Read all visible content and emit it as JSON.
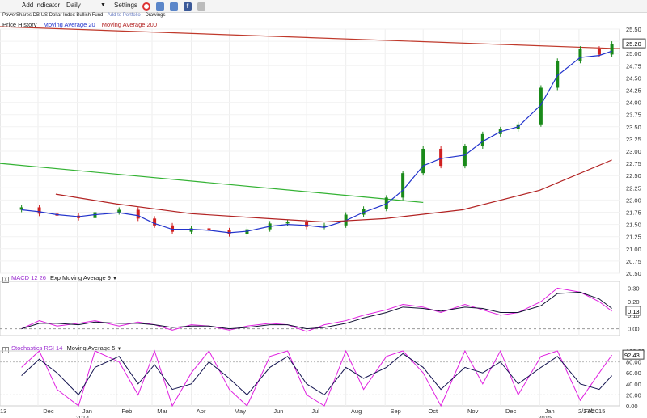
{
  "toolbar": {
    "logo": "",
    "add_indicator": "Add Indicator",
    "interval": "Daily",
    "settings": "Settings",
    "status": "",
    "icons": [
      "record-icon",
      "bar-chart-icon",
      "share-icon",
      "facebook-icon",
      "email-icon"
    ]
  },
  "subtitle": {
    "fund": "PowerShares DB US Dollar Index Bullish Fund",
    "portfolio": "Add to Portfolio",
    "drawings": "Drawings"
  },
  "legend": {
    "price": "Price History",
    "ma20": "Moving Average 20",
    "ma200": "Moving Average 200"
  },
  "colors": {
    "up": "#1a8a1a",
    "down": "#d02020",
    "ma20": "#2233cc",
    "ma200": "#b22222",
    "trend_red": "#c0392b",
    "trend_green": "#33b233",
    "macd": "#e020e0",
    "signal": "#111133",
    "stoch": "#e020e0",
    "stoch_ma": "#141450"
  },
  "chart_data": [
    {
      "type": "candlestick",
      "title": "PowerShares DB US Dollar Index Bullish Fund",
      "series": [
        {
          "name": "Price History"
        },
        {
          "name": "Moving Average 20"
        },
        {
          "name": "Moving Average 200"
        }
      ],
      "ylim": [
        20.5,
        25.5
      ],
      "yticks": [
        "25.50",
        "25.25",
        "25.00",
        "24.75",
        "24.50",
        "24.25",
        "24.00",
        "23.75",
        "23.50",
        "23.25",
        "23.00",
        "22.75",
        "22.50",
        "22.25",
        "22.00",
        "21.75",
        "21.50",
        "21.25",
        "21.00",
        "20.75",
        "20.50"
      ],
      "last_price": "25.20",
      "x_dates": [
        "2013-11-18",
        "2013-12-02",
        "2013-12-16",
        "2014-01-02",
        "2014-01-15",
        "2014-02-03",
        "2014-02-18",
        "2014-03-03",
        "2014-03-17",
        "2014-04-01",
        "2014-04-15",
        "2014-05-01",
        "2014-05-15",
        "2014-06-02",
        "2014-06-16",
        "2014-07-01",
        "2014-07-15",
        "2014-08-01",
        "2014-08-15",
        "2014-09-02",
        "2014-09-15",
        "2014-10-01",
        "2014-10-15",
        "2014-11-03",
        "2014-11-17",
        "2014-12-01",
        "2014-12-15",
        "2015-01-02",
        "2015-01-15",
        "2015-02-02",
        "2015-02-17",
        "2015-02-27"
      ],
      "close": [
        21.85,
        21.72,
        21.68,
        21.63,
        21.75,
        21.8,
        21.62,
        21.48,
        21.35,
        21.42,
        21.38,
        21.3,
        21.4,
        21.52,
        21.55,
        21.45,
        21.48,
        21.7,
        21.82,
        22.05,
        22.55,
        23.05,
        22.7,
        23.1,
        23.35,
        23.45,
        23.55,
        24.3,
        24.85,
        25.1,
        24.98,
        25.2
      ],
      "ma20": [
        21.8,
        21.76,
        21.7,
        21.66,
        21.7,
        21.74,
        21.68,
        21.52,
        21.4,
        21.4,
        21.38,
        21.33,
        21.36,
        21.46,
        21.5,
        21.48,
        21.44,
        21.58,
        21.75,
        21.92,
        22.2,
        22.7,
        22.85,
        22.92,
        23.2,
        23.4,
        23.5,
        23.95,
        24.55,
        24.92,
        24.96,
        25.05
      ],
      "ma200_dates": [
        "2013-12-15",
        "2014-02-01",
        "2014-04-01",
        "2014-06-01",
        "2014-07-15",
        "2014-09-01",
        "2014-11-01",
        "2015-01-01",
        "2015-02-27"
      ],
      "ma200": [
        22.12,
        21.92,
        21.72,
        21.62,
        21.55,
        21.62,
        21.8,
        22.2,
        22.82
      ],
      "trendlines": [
        {
          "color": "red",
          "points": [
            [
              "2013-11-01",
              25.55
            ],
            [
              "2015-03-05",
              25.1
            ]
          ]
        },
        {
          "color": "green",
          "points": [
            [
              "2013-11-01",
              22.75
            ],
            [
              "2014-10-01",
              21.95
            ]
          ]
        }
      ],
      "x_labels": [
        "13",
        "Dec",
        "Jan",
        "Feb",
        "Mar",
        "Apr",
        "May",
        "Jun",
        "Jul",
        "Aug",
        "Sep",
        "Oct",
        "Nov",
        "Dec",
        "Jan",
        "Feb",
        "2/27/2015"
      ],
      "x_years": [
        "2014",
        "2015"
      ]
    },
    {
      "type": "line",
      "title": "MACD 12 26",
      "series": [
        {
          "name": "MACD 12 26"
        },
        {
          "name": "Exp Moving Average 9"
        }
      ],
      "ylim": [
        -0.05,
        0.35
      ],
      "yticks": [
        "0.30",
        "0.20",
        "0.10",
        "0.00"
      ],
      "last_value": "0.13",
      "macd": [
        0.0,
        0.06,
        0.02,
        0.04,
        0.06,
        0.02,
        0.05,
        0.03,
        -0.01,
        0.03,
        0.02,
        -0.01,
        0.02,
        0.04,
        0.03,
        -0.02,
        0.03,
        0.06,
        0.1,
        0.14,
        0.18,
        0.16,
        0.12,
        0.18,
        0.14,
        0.1,
        0.12,
        0.2,
        0.3,
        0.27,
        0.2,
        0.13
      ],
      "signal": [
        0.0,
        0.04,
        0.04,
        0.03,
        0.05,
        0.04,
        0.04,
        0.03,
        0.01,
        0.02,
        0.02,
        0.0,
        0.01,
        0.03,
        0.03,
        0.0,
        0.01,
        0.04,
        0.08,
        0.12,
        0.16,
        0.15,
        0.13,
        0.16,
        0.15,
        0.12,
        0.12,
        0.17,
        0.26,
        0.27,
        0.22,
        0.15
      ]
    },
    {
      "type": "line",
      "title": "Stochastics RSI 14",
      "series": [
        {
          "name": "Stochastics RSI 14"
        },
        {
          "name": "Moving Average 5"
        }
      ],
      "ylim": [
        0,
        100
      ],
      "yticks": [
        "100.00",
        "80.00",
        "60.00",
        "40.00",
        "20.00",
        "0.00"
      ],
      "last_value": "92.43",
      "stoch": [
        70,
        100,
        30,
        0,
        100,
        80,
        20,
        100,
        0,
        60,
        100,
        30,
        0,
        90,
        100,
        20,
        0,
        100,
        30,
        90,
        100,
        60,
        0,
        100,
        40,
        100,
        20,
        90,
        100,
        10,
        60,
        92.43
      ],
      "stoch_ma": [
        55,
        85,
        60,
        20,
        70,
        90,
        40,
        75,
        30,
        40,
        80,
        50,
        20,
        70,
        90,
        40,
        20,
        70,
        50,
        70,
        95,
        70,
        30,
        70,
        60,
        80,
        40,
        70,
        90,
        40,
        30,
        55
      ]
    }
  ]
}
